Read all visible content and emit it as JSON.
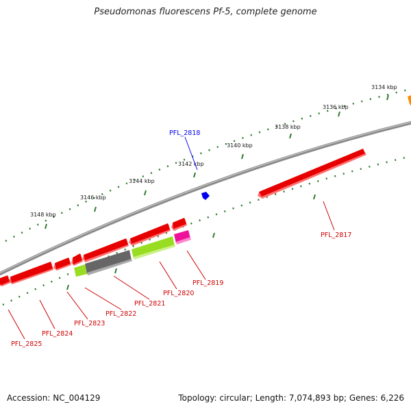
{
  "title": "Pseudomonas fluorescens Pf-5, complete genome",
  "footer": {
    "accession": "Accession: NC_004129",
    "summary": "Topology: circular; Length: 7,074,893 bp; Genes: 6,226"
  },
  "colors": {
    "backbone": "#8a8a8a",
    "tick": "#2f7a2f",
    "cds": "#e60000",
    "cds_label": "#cc0000",
    "blue_feature": "#0000ee",
    "lime": "#99dd22",
    "gray": "#666666",
    "magenta": "#ee1199",
    "orange": "#ff8800"
  },
  "scale_labels": [
    "3134 kbp",
    "3136 kbp",
    "3138 kbp",
    "3140 kbp",
    "3142 kbp",
    "3144 kbp",
    "3146 kbp",
    "3148 kbp"
  ],
  "labels": {
    "top": [
      {
        "text": "PFL_2818",
        "color": "blue"
      }
    ],
    "bottom": [
      {
        "text": "PFL_2817"
      },
      {
        "text": "PFL_2819"
      },
      {
        "text": "PFL_2820"
      },
      {
        "text": "PFL_2821"
      },
      {
        "text": "PFL_2822"
      },
      {
        "text": "PFL_2823"
      },
      {
        "text": "PFL_2824"
      },
      {
        "text": "PFL_2825"
      }
    ]
  }
}
